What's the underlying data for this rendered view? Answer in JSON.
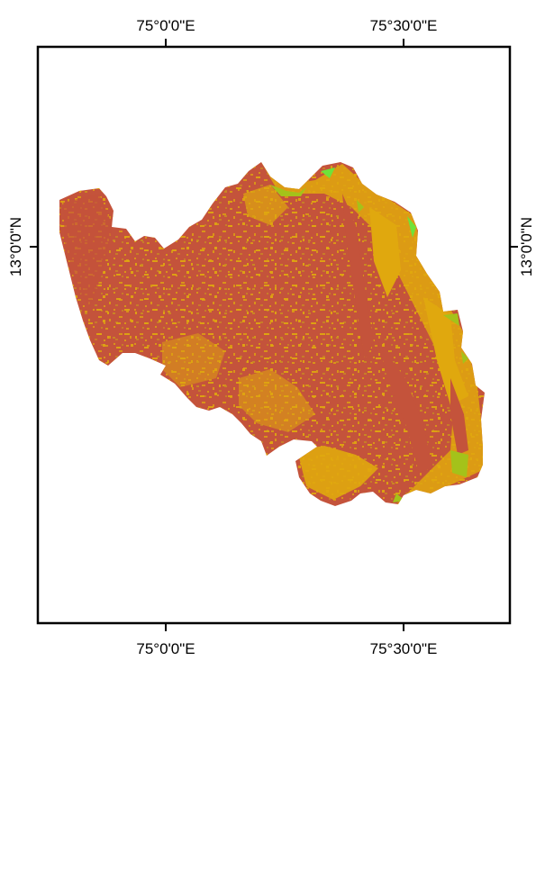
{
  "map": {
    "graticule": {
      "top_labels": [
        "75°0'0\"E",
        "75°30'0\"E"
      ],
      "bottom_labels": [
        "75°0'0\"E",
        "75°30'0\"E"
      ],
      "left_label": "13°0'0\"N",
      "right_label": "13°0'0\"N"
    },
    "colors": {
      "frame": "#000000",
      "dominant_class": "#c4533b",
      "secondary_class": "#e0a80e",
      "mixed_class": "#c98a22",
      "minor_class": "#a4c21a",
      "rare_class": "#6ee23a"
    }
  }
}
